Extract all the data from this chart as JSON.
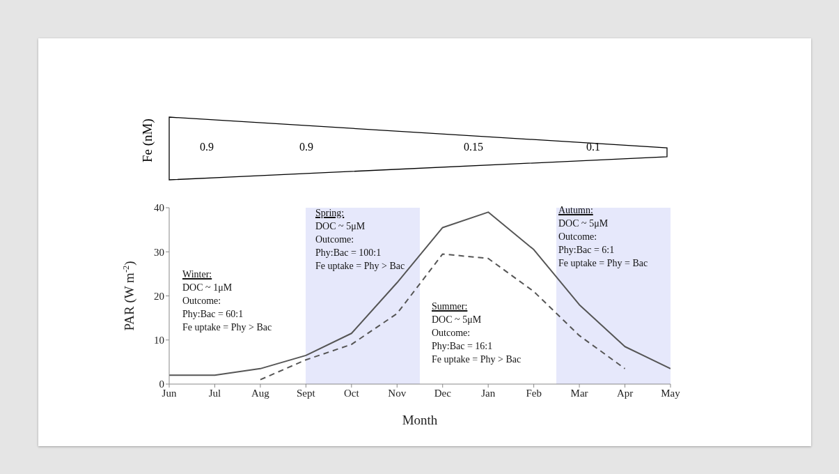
{
  "chart_data": [
    {
      "type": "other",
      "ylabel": "Fe (nM)",
      "annotations": [
        "0.9",
        "0.9",
        "0.15",
        "0.1"
      ]
    },
    {
      "type": "line",
      "xlabel": "Month",
      "ylabel": "PAR (W m$^{-2}$)",
      "categories": [
        "Jun",
        "Jul",
        "Aug",
        "Sept",
        "Oct",
        "Nov",
        "Dec",
        "Jan",
        "Feb",
        "Mar",
        "Apr",
        "May"
      ],
      "series": [
        {
          "color": "#555555",
          "line_style": "solid",
          "values": [
            2,
            2,
            3.5,
            6.5,
            11.5,
            23,
            35.5,
            39,
            30.5,
            18,
            8.5,
            3.5
          ]
        },
        {
          "color": "#555555",
          "line_style": "dashed",
          "values": [
            null,
            null,
            1,
            5.5,
            9,
            16,
            29.5,
            28.5,
            21,
            11,
            3.5,
            null
          ]
        }
      ],
      "ylim": [
        0,
        40
      ],
      "yticks": [
        0,
        10,
        20,
        30,
        40
      ],
      "marker": "none",
      "annotations": [
        "Winter:\nDOC ~ 1μM\nOutcome:\nPhy:Bac = 60:1\nFe uptake = Phy > Bac",
        "Spring:\nDOC ~ 5μM\nOutcome:\nPhy:Bac = 100:1\nFe uptake = Phy > Bac",
        "Summer:\nDOC ~ 5μM\nOutcome:\nPhy:Bac = 16:1\nFe uptake = Phy > Bac",
        "Autumn:\nDOC ~ 5μM\nOutcome:\nPhy:Bac = 6:1\nFe uptake = Phy = Bac"
      ]
    }
  ]
}
